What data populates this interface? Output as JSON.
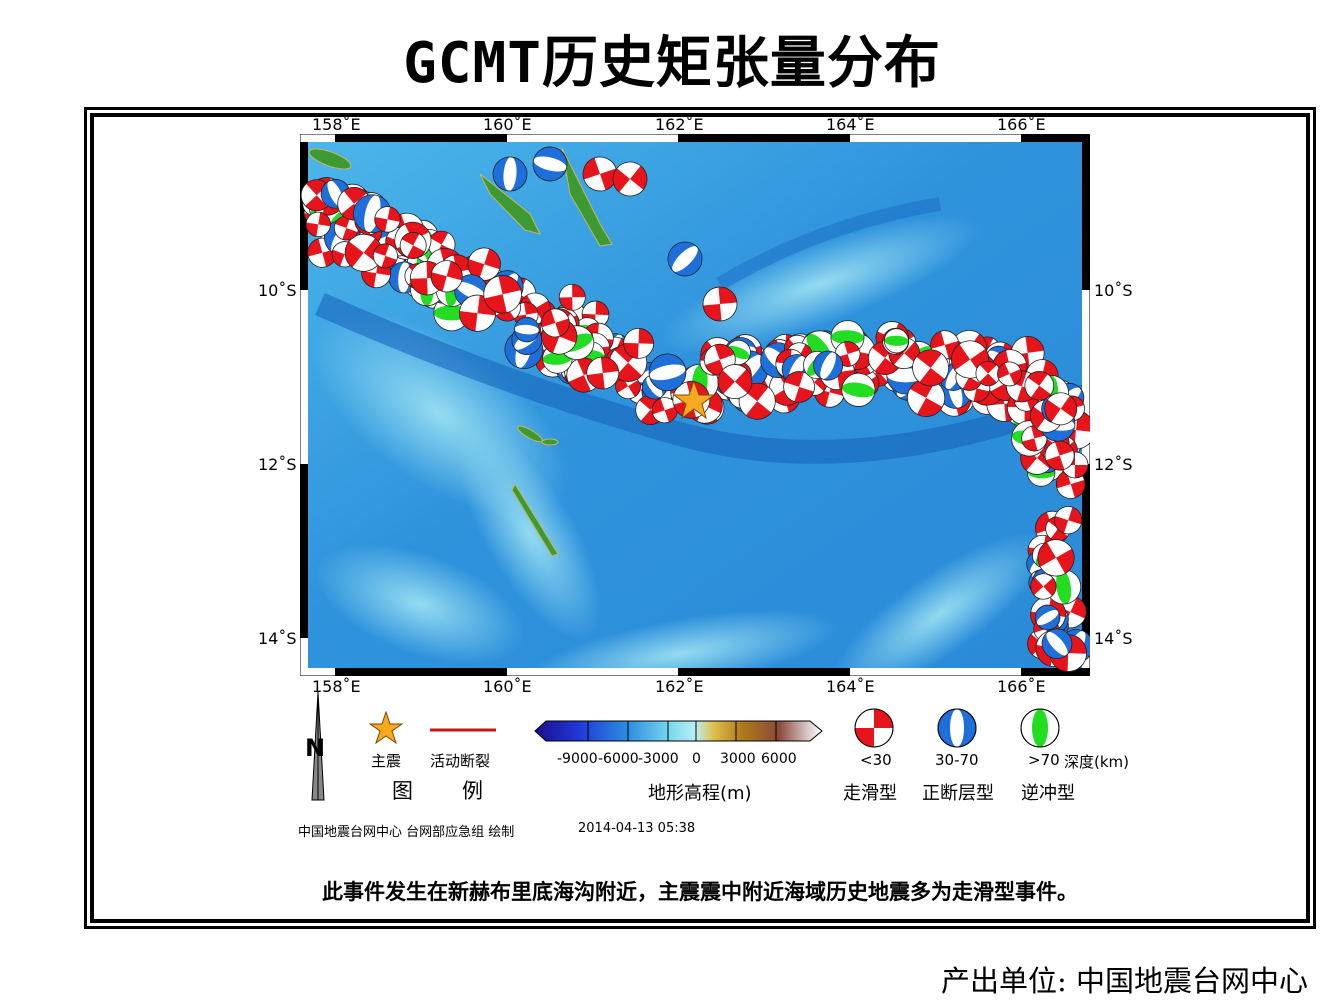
{
  "title": "GCMT历史矩张量分布",
  "map": {
    "lon_ticks": [
      "158˚E",
      "160˚E",
      "162˚E",
      "164˚E",
      "166˚E"
    ],
    "lat_ticks": [
      "10˚S",
      "12˚S",
      "14˚S"
    ],
    "lon_range": [
      157.9,
      167.0
    ],
    "lat_range": [
      -14.3,
      -8.1
    ],
    "mainshock": {
      "lon": 162.2,
      "lat": -11.3
    },
    "colors": {
      "strike_slip": "#e8141c",
      "normal": "#1e6fd9",
      "thrust": "#22dd22",
      "ocean_deep": "#1f7fd6",
      "ocean_shallow": "#6fd0ee",
      "land": "#2f8a2a"
    }
  },
  "legend": {
    "title": "图　例",
    "mainshock_label": "主震",
    "fault_label": "活动断裂",
    "colorbar_ticks": [
      "-9000",
      "-6000",
      "-3000",
      "0",
      "3000",
      "6000"
    ],
    "colorbar_title": "地形高程(m)",
    "depth_labels": [
      "<30",
      "30-70",
      ">70"
    ],
    "depth_unit": "深度(km)",
    "mechanism_labels": [
      "走滑型",
      "正断层型",
      "逆冲型"
    ],
    "north_label": "N"
  },
  "credit": {
    "maker": "中国地震台网中心 台网部应急组 绘制",
    "datetime": "2014-04-13 05:38"
  },
  "note": "此事件发生在新赫布里底海沟附近，主震震中附近海域历史地震多为走滑型事件。",
  "producer": "产出单位: 中国地震台网中心"
}
